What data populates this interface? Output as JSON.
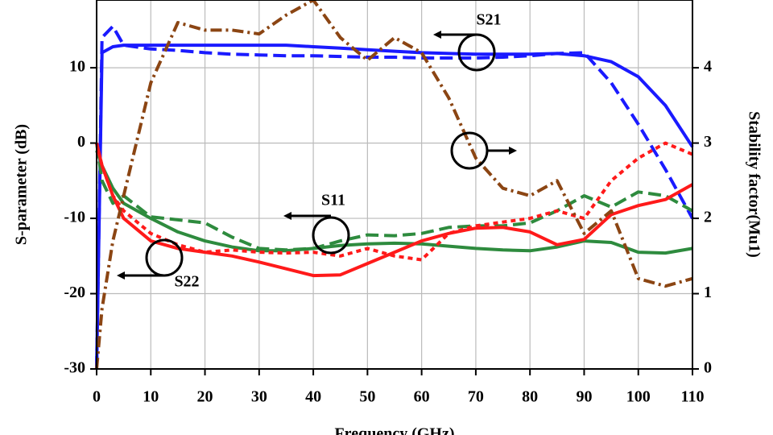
{
  "chart_data": {
    "type": "line",
    "x_label": "Frequency (GHz)",
    "y_label": "S-parameter (dB)",
    "y2_label": "Stability factor(Mu1)",
    "annotations": [
      "S21",
      "S11",
      "S22"
    ],
    "x": [
      0,
      1,
      3,
      5,
      10,
      15,
      20,
      25,
      30,
      35,
      40,
      45,
      50,
      55,
      60,
      65,
      70,
      75,
      80,
      85,
      90,
      95,
      100,
      105,
      110
    ],
    "xlim": [
      0,
      110
    ],
    "xticks": [
      0,
      10,
      20,
      30,
      40,
      50,
      60,
      70,
      80,
      90,
      100,
      110
    ],
    "ylim": [
      -30,
      19
    ],
    "yticks": [
      -30,
      -20,
      -10,
      0,
      10
    ],
    "y2lim": [
      0,
      4.9
    ],
    "y2ticks": [
      0,
      1,
      2,
      3,
      4
    ],
    "grid": true,
    "series": [
      {
        "color": "#1a1aff",
        "dash": "solid",
        "values": [
          -30,
          12,
          12.8,
          13,
          13,
          13,
          13,
          13,
          13,
          13,
          12.8,
          12.6,
          12.4,
          12.2,
          12,
          11.9,
          11.8,
          11.8,
          11.8,
          11.9,
          11.6,
          10.8,
          8.8,
          5,
          -0.5
        ]
      },
      {
        "color": "#1a1aff",
        "dash": "dashed",
        "values": [
          -30,
          14,
          15.5,
          13,
          12.5,
          12.3,
          12,
          11.8,
          11.7,
          11.6,
          11.6,
          11.5,
          11.4,
          11.4,
          11.3,
          11.3,
          11.3,
          11.4,
          11.6,
          11.9,
          12,
          8,
          2.5,
          -3.5,
          -10
        ]
      },
      {
        "color": "#2e8b3e",
        "dash": "solid",
        "values": [
          -1,
          -3,
          -6,
          -8,
          -10,
          -11.8,
          -13,
          -13.8,
          -14.3,
          -14.3,
          -14,
          -13.6,
          -13.4,
          -13.3,
          -13.4,
          -13.7,
          -14,
          -14.2,
          -14.3,
          -13.8,
          -13,
          -13.2,
          -14.5,
          -14.6,
          -14
        ]
      },
      {
        "color": "#2e8b3e",
        "dash": "dashed",
        "values": [
          0,
          -5,
          -8,
          -7,
          -9.8,
          -10.2,
          -10.6,
          -12.5,
          -14,
          -14.2,
          -14,
          -13,
          -12.2,
          -12.3,
          -12,
          -11.2,
          -11,
          -11,
          -10.6,
          -9,
          -7,
          -8.5,
          -6.5,
          -7,
          -9
        ]
      },
      {
        "color": "#ff1a1a",
        "dash": "solid",
        "values": [
          0,
          -3,
          -7,
          -10,
          -13,
          -14,
          -14.5,
          -15,
          -15.8,
          -16.7,
          -17.6,
          -17.5,
          -16,
          -14.5,
          -13,
          -12,
          -11.3,
          -11.2,
          -11.8,
          -13.5,
          -12.8,
          -9.5,
          -8.3,
          -7.5,
          -5.5
        ]
      },
      {
        "color": "#ff1a1a",
        "dash": "dotted",
        "values": [
          0,
          -3,
          -7,
          -9,
          -12,
          -13.5,
          -14.5,
          -14.2,
          -14.5,
          -14.6,
          -14.5,
          -15,
          -14,
          -15,
          -15.5,
          -12,
          -11,
          -10.5,
          -10,
          -9,
          -10,
          -5,
          -2,
          0,
          -1.5
        ]
      },
      {
        "color": "#8b4513",
        "dash": "dashdot",
        "axis": "y2",
        "values": [
          0,
          0.8,
          1.7,
          2.3,
          3.8,
          4.6,
          4.5,
          4.5,
          4.45,
          4.7,
          4.9,
          4.4,
          4.1,
          4.4,
          4.2,
          3.6,
          2.8,
          2.4,
          2.3,
          2.5,
          1.8,
          2.1,
          1.2,
          1.1,
          1.2
        ]
      }
    ]
  }
}
